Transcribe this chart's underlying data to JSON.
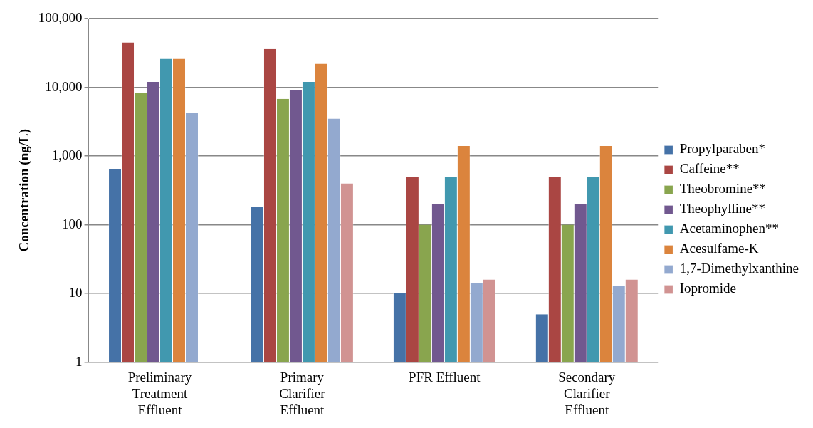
{
  "chart_data": {
    "type": "bar",
    "ylabel": "Concentration (ng/L)",
    "categories": [
      "Preliminary Treatment Effluent",
      "Primary Clarifier Effluent",
      "PFR Effluent",
      "Secondary Clarifier Effluent"
    ],
    "series": [
      {
        "name": "Propylparaben*",
        "color": "#4572a7",
        "values": [
          650,
          180,
          10,
          5
        ]
      },
      {
        "name": "Caffeine**",
        "color": "#aa4643",
        "values": [
          45000,
          36000,
          500,
          500
        ]
      },
      {
        "name": "Theobromine**",
        "color": "#89a54e",
        "values": [
          8200,
          6800,
          100,
          100
        ]
      },
      {
        "name": "Theophylline**",
        "color": "#71588f",
        "values": [
          12000,
          9200,
          200,
          200
        ]
      },
      {
        "name": "Acetaminophen**",
        "color": "#4198af",
        "values": [
          26000,
          12000,
          500,
          500
        ]
      },
      {
        "name": "Acesulfame-K",
        "color": "#db843d",
        "values": [
          26000,
          22000,
          1400,
          1400
        ]
      },
      {
        "name": "1,7-Dimethylxanthine",
        "color": "#93a9cf",
        "values": [
          4200,
          3500,
          14,
          13
        ]
      },
      {
        "name": "Iopromide",
        "color": "#d19392",
        "values": [
          null,
          400,
          16,
          16
        ]
      }
    ],
    "log": "y",
    "ylim": [
      1,
      100000
    ],
    "yticks": [
      {
        "value": 1,
        "label": "1"
      },
      {
        "value": 10,
        "label": "10"
      },
      {
        "value": 100,
        "label": "100"
      },
      {
        "value": 1000,
        "label": "1,000"
      },
      {
        "value": 10000,
        "label": "10,000"
      },
      {
        "value": 100000,
        "label": "100,000"
      }
    ],
    "grid": "y",
    "legend": "right"
  }
}
